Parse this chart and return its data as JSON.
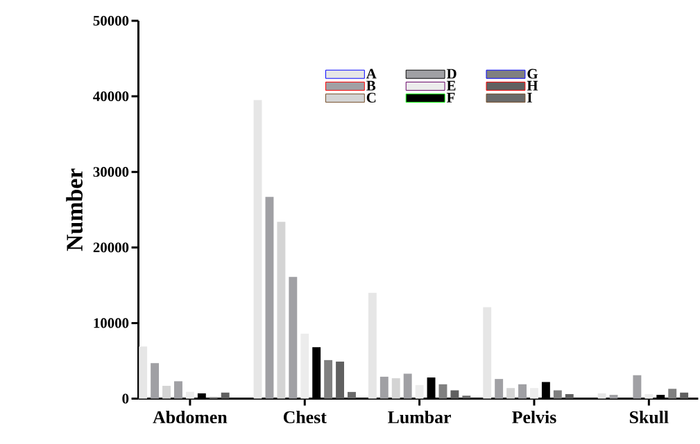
{
  "chart_data": {
    "type": "bar",
    "ylabel": "Number",
    "categories": [
      "Abdomen",
      "Chest",
      "Lumbar",
      "Pelvis",
      "Skull"
    ],
    "ylim": [
      0,
      50000
    ],
    "yticks": [
      0,
      10000,
      20000,
      30000,
      40000,
      50000
    ],
    "legend": "top right",
    "series": [
      {
        "name": "A",
        "color": "#e6e6e6",
        "values": [
          6900,
          39500,
          14000,
          12100,
          700
        ]
      },
      {
        "name": "B",
        "color": "#a0a0a4",
        "values": [
          4700,
          26700,
          2900,
          2600,
          500
        ]
      },
      {
        "name": "C",
        "color": "#d4d4d4",
        "values": [
          1700,
          23400,
          2700,
          1400,
          0
        ]
      },
      {
        "name": "D",
        "color": "#a0a0a4",
        "values": [
          2300,
          16100,
          3300,
          1900,
          3100
        ]
      },
      {
        "name": "E",
        "color": "#ececec",
        "values": [
          900,
          8600,
          1800,
          1400,
          600
        ]
      },
      {
        "name": "F",
        "color": "#000000",
        "values": [
          700,
          6800,
          2800,
          2200,
          500
        ]
      },
      {
        "name": "G",
        "color": "#808080",
        "values": [
          200,
          5100,
          1900,
          1100,
          1300
        ]
      },
      {
        "name": "H",
        "color": "#606060",
        "values": [
          800,
          4900,
          1100,
          600,
          800
        ]
      },
      {
        "name": "I",
        "color": "#6a6a6a",
        "values": [
          0,
          900,
          400,
          0,
          0
        ]
      }
    ]
  }
}
